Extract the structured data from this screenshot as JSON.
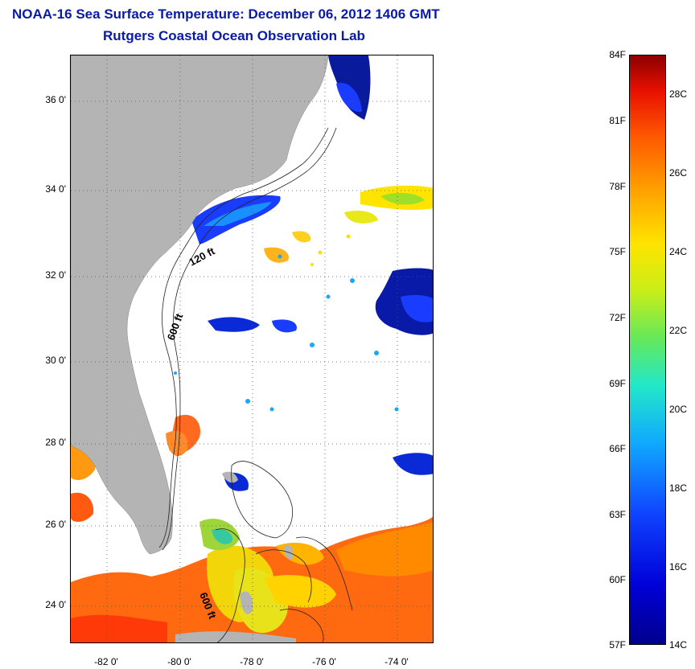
{
  "title": {
    "line1": "NOAA-16 Sea Surface Temperature:  December 06, 2012 1406 GMT",
    "line2": "Rutgers Coastal Ocean Observation Lab"
  },
  "map": {
    "y_ticks": [
      "36 0'",
      "34 0'",
      "32 0'",
      "30 0'",
      "28 0'",
      "26 0'",
      "24 0'"
    ],
    "x_ticks": [
      "-82 0'",
      "-80 0'",
      "-78 0'",
      "-76 0'",
      "-74 0'"
    ],
    "contour_labels": [
      "120 ft",
      "600 ft",
      "600 ft"
    ],
    "colors": {
      "land": "#b4b4b4",
      "background": "#ffffff",
      "title": "#0a1aa8"
    }
  },
  "colorbar": {
    "f_labels": [
      "84F",
      "81F",
      "78F",
      "75F",
      "72F",
      "69F",
      "66F",
      "63F",
      "60F",
      "57F"
    ],
    "c_labels": [
      "28C",
      "26C",
      "24C",
      "22C",
      "20C",
      "18C",
      "16C",
      "14C"
    ]
  }
}
